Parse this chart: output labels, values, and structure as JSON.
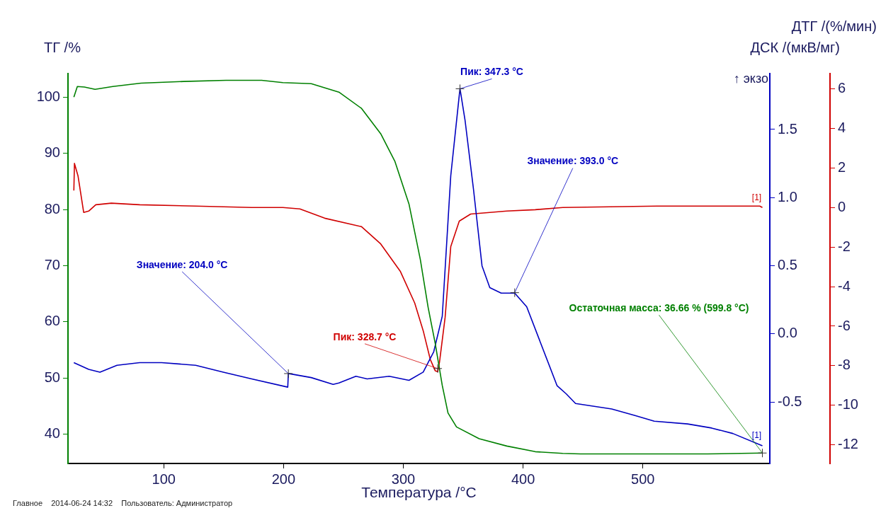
{
  "chart_data": {
    "type": "line",
    "xlabel": "Температура /°C",
    "ylabel": "ТГ /%",
    "y2label": "ДСК /(мкВ/мг)",
    "y3label": "ДТГ /(%/мин)",
    "xlim": [
      20,
      606
    ],
    "xticks": [
      100,
      200,
      300,
      400,
      500
    ],
    "ylim": [
      34.8,
      104.2
    ],
    "yticks": [
      40,
      50,
      60,
      70,
      80,
      90,
      100
    ],
    "y2lim": [
      -0.95,
      1.91
    ],
    "y2ticks": [
      -0.5,
      {
        "value": 0,
        "label": "0.0"
      },
      0.5,
      {
        "value": 1,
        "label": "1.0"
      },
      1.5
    ],
    "y3lim": [
      -12.94,
      6.77
    ],
    "y3ticks": [
      -12,
      -10,
      -8,
      -6,
      -4,
      -2,
      0,
      2,
      4,
      6
    ],
    "grid": false,
    "legend": false,
    "marker": "none",
    "line_style": "solid",
    "series": [
      {
        "color": "#008000",
        "axis": "y",
        "x": [
          24.9,
          27.8,
          33.7,
          42.6,
          57.4,
          81,
          116.6,
          152,
          181.7,
          199.4,
          223.1,
          246.2,
          265.1,
          281.1,
          292.9,
          304.7,
          314.2,
          320.7,
          326.6,
          332.5,
          337.3,
          344.4,
          363.3,
          386.4,
          410.1,
          433.1,
          448,
          495,
          554,
          599.8
        ],
        "values": [
          100.0,
          101.9,
          101.8,
          101.4,
          101.9,
          102.5,
          102.8,
          103.0,
          103.0,
          102.6,
          102.4,
          100.9,
          98.0,
          93.5,
          88.6,
          81.0,
          71.1,
          62.6,
          56.2,
          48.7,
          43.8,
          41.3,
          39.2,
          37.9,
          36.9,
          36.6,
          36.5,
          36.5,
          36.5,
          36.66
        ]
      },
      {
        "color": "#0000c0",
        "axis": "y2",
        "x": [
          24.9,
          37.3,
          46.7,
          60.9,
          79.9,
          98.2,
          126.6,
          149.7,
          173.4,
          203.5,
          204.0,
          223.1,
          241.4,
          246.2,
          260.4,
          269.8,
          288.2,
          304.7,
          316.6,
          325.4,
          332.5,
          339.6,
          347.3,
          351.5,
          358.6,
          365.7,
          372.2,
          381.7,
          393.0,
          403,
          414.8,
          428.4,
          436.1,
          443.8,
          474,
          494,
          509.5,
          537.3,
          557.4,
          575.1,
          599.8
        ],
        "values": [
          -0.21,
          -0.26,
          -0.28,
          -0.23,
          -0.21,
          -0.21,
          -0.23,
          -0.28,
          -0.33,
          -0.39,
          -0.29,
          -0.32,
          -0.37,
          -0.36,
          -0.31,
          -0.33,
          -0.31,
          -0.34,
          -0.28,
          -0.13,
          0.13,
          1.16,
          1.8,
          1.57,
          1.06,
          0.5,
          0.34,
          0.3,
          0.3,
          0.2,
          -0.07,
          -0.38,
          -0.44,
          -0.51,
          -0.55,
          -0.6,
          -0.64,
          -0.66,
          -0.69,
          -0.73,
          -0.82
        ]
      },
      {
        "color": "#d00000",
        "axis": "y3",
        "x": [
          24.9,
          25.4,
          28.4,
          33.1,
          37.3,
          43.2,
          56.2,
          79.9,
          126.6,
          173.4,
          199.4,
          213.6,
          234.3,
          265.1,
          281.1,
          297.6,
          309.5,
          316.6,
          322.5,
          326.6,
          328.7,
          330.2,
          334.9,
          339.6,
          346.7,
          356.2,
          386.4,
          410.1,
          433.1,
          511.8,
          597.6,
          599.8
        ],
        "values": [
          0.86,
          2.23,
          1.59,
          -0.25,
          -0.18,
          0.14,
          0.22,
          0.14,
          0.07,
          0.0,
          0.0,
          -0.07,
          -0.54,
          -0.97,
          -1.84,
          -3.24,
          -4.83,
          -6.23,
          -7.68,
          -8.25,
          -8.3,
          -7.82,
          -5.55,
          -1.98,
          -0.69,
          -0.33,
          -0.18,
          -0.11,
          0.0,
          0.07,
          0.07,
          0.0
        ]
      }
    ],
    "annotations": [
      {
        "text": "Значение: 204.0 °C",
        "x": 204.0,
        "y": 50.8
      },
      {
        "text": "Пик: 347.3 °C",
        "x": 347.3,
        "y": 101.5
      },
      {
        "text": "Значение: 393.0 °C",
        "x": 393.0,
        "y": 65.2
      },
      {
        "text": "Пик: 328.7 °C",
        "x": 328.7,
        "y": 51.7
      },
      {
        "text": "Остаточная масса: 36.66 % (599.8 °C)",
        "x": 599.8,
        "y": 36.66
      },
      "[1]",
      "[1]",
      "Главное    2014-06-24 14:32    Пользователь: Администратор",
      "↑ экзо"
    ]
  }
}
